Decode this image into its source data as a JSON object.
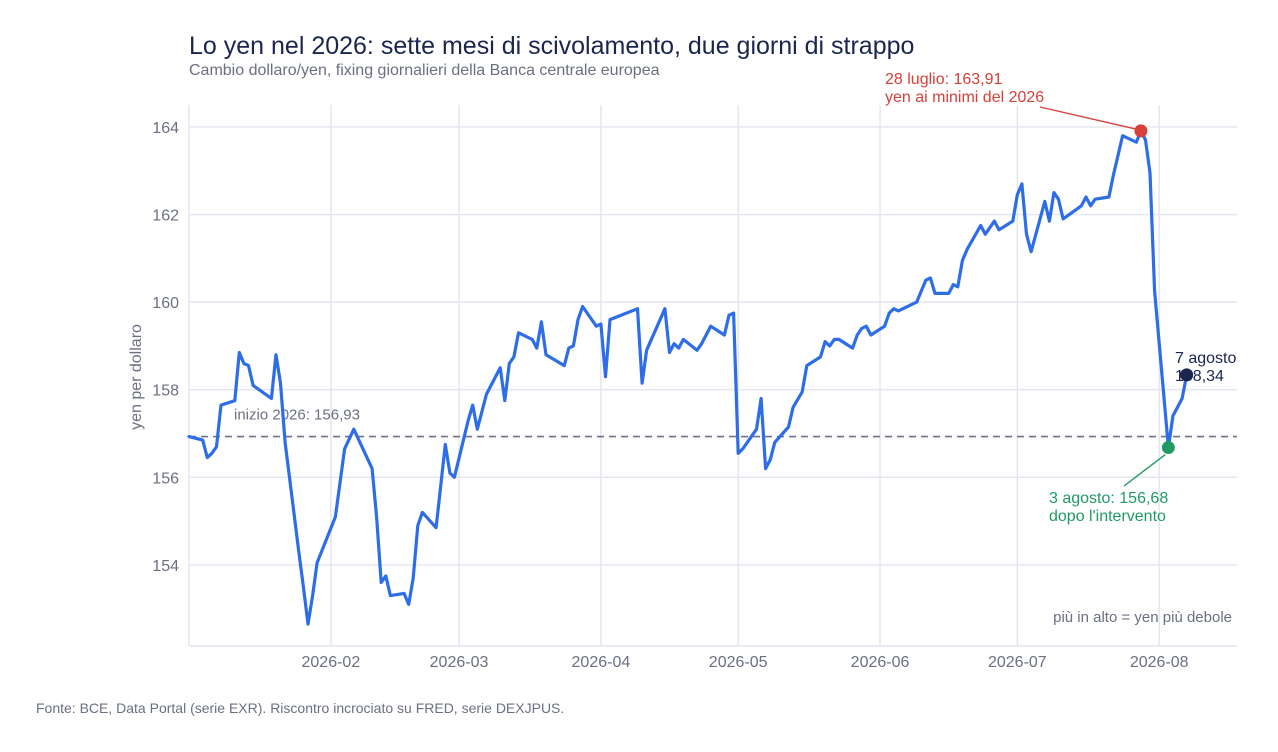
{
  "title": "Lo yen nel 2026: sette mesi di scivolamento, due giorni di strappo",
  "subtitle": "Cambio dollaro/yen, fixing giornalieri della Banca centrale europea",
  "source": "Fonte: BCE, Data Portal (serie EXR). Riscontro incrociato su FRED, serie DEXJPUS.",
  "note": "più in alto = yen più debole",
  "colors": {
    "line": "#2e6de8",
    "grid": "#e3e5ef",
    "baseline": "#6e7385",
    "peak": "#d8403a",
    "trough": "#1f9a63",
    "end": "#1a2550"
  },
  "annotations": {
    "baseline_label": "inizio 2026: 156,93",
    "peak_line1": "28 luglio: 163,91",
    "peak_line2": "yen ai minimi del 2026",
    "trough_line1": "3 agosto: 156,68",
    "trough_line2": "dopo l'intervento",
    "end_line1": "7 agosto",
    "end_line2": "158,34"
  },
  "chart_data": {
    "type": "line",
    "title": "Lo yen nel 2026: sette mesi di scivolamento, due giorni di strappo",
    "subtitle": "Cambio dollaro/yen, fixing giornalieri della Banca centrale europea",
    "xlabel": "",
    "ylabel": "yen per dollaro",
    "x_ticks": [
      "2026-02",
      "2026-03",
      "2026-04",
      "2026-05",
      "2026-06",
      "2026-07",
      "2026-08"
    ],
    "y_ticks": [
      154,
      156,
      158,
      160,
      162,
      164
    ],
    "xlim": [
      "2026-01-01",
      "2026-08-18"
    ],
    "ylim": [
      152.15,
      164.5
    ],
    "grid": true,
    "reference_line": {
      "label": "inizio 2026: 156,93",
      "y": 156.93
    },
    "highlights": [
      {
        "x": "2026-07-28",
        "y": 163.91,
        "label": "28 luglio: 163,91 / yen ai minimi del 2026"
      },
      {
        "x": "2026-08-03",
        "y": 156.68,
        "label": "3 agosto: 156,68 / dopo l'intervento"
      },
      {
        "x": "2026-08-07",
        "y": 158.34,
        "label": "7 agosto / 158,34"
      }
    ],
    "series": [
      {
        "name": "",
        "points": [
          [
            "2026-01-01",
            156.93
          ],
          [
            "2026-01-04",
            156.85
          ],
          [
            "2026-01-05",
            156.45
          ],
          [
            "2026-01-06",
            156.55
          ],
          [
            "2026-01-07",
            156.7
          ],
          [
            "2026-01-08",
            157.65
          ],
          [
            "2026-01-11",
            157.75
          ],
          [
            "2026-01-12",
            158.85
          ],
          [
            "2026-01-13",
            158.6
          ],
          [
            "2026-01-14",
            158.55
          ],
          [
            "2026-01-15",
            158.1
          ],
          [
            "2026-01-19",
            157.8
          ],
          [
            "2026-01-20",
            158.8
          ],
          [
            "2026-01-21",
            158.15
          ],
          [
            "2026-01-22",
            156.8
          ],
          [
            "2026-01-25",
            154.3
          ],
          [
            "2026-01-26",
            153.5
          ],
          [
            "2026-01-27",
            152.65
          ],
          [
            "2026-01-28",
            153.3
          ],
          [
            "2026-01-29",
            154.05
          ],
          [
            "2026-02-02",
            155.1
          ],
          [
            "2026-02-04",
            156.65
          ],
          [
            "2026-02-06",
            157.1
          ],
          [
            "2026-02-10",
            156.2
          ],
          [
            "2026-02-11",
            155.1
          ],
          [
            "2026-02-12",
            153.6
          ],
          [
            "2026-02-13",
            153.75
          ],
          [
            "2026-02-14",
            153.3
          ],
          [
            "2026-02-17",
            153.35
          ],
          [
            "2026-02-18",
            153.1
          ],
          [
            "2026-02-19",
            153.7
          ],
          [
            "2026-02-20",
            154.9
          ],
          [
            "2026-02-21",
            155.2
          ],
          [
            "2026-02-24",
            154.85
          ],
          [
            "2026-02-25",
            155.8
          ],
          [
            "2026-02-26",
            156.75
          ],
          [
            "2026-02-27",
            156.1
          ],
          [
            "2026-02-28",
            156.0
          ],
          [
            "2026-03-03",
            157.3
          ],
          [
            "2026-03-04",
            157.65
          ],
          [
            "2026-03-05",
            157.1
          ],
          [
            "2026-03-07",
            157.9
          ],
          [
            "2026-03-10",
            158.5
          ],
          [
            "2026-03-11",
            157.75
          ],
          [
            "2026-03-12",
            158.6
          ],
          [
            "2026-03-13",
            158.75
          ],
          [
            "2026-03-14",
            159.3
          ],
          [
            "2026-03-17",
            159.15
          ],
          [
            "2026-03-18",
            158.95
          ],
          [
            "2026-03-19",
            159.55
          ],
          [
            "2026-03-20",
            158.8
          ],
          [
            "2026-03-24",
            158.55
          ],
          [
            "2026-03-25",
            158.95
          ],
          [
            "2026-03-26",
            159.0
          ],
          [
            "2026-03-27",
            159.6
          ],
          [
            "2026-03-28",
            159.9
          ],
          [
            "2026-03-31",
            159.45
          ],
          [
            "2026-04-01",
            159.5
          ],
          [
            "2026-04-02",
            158.3
          ],
          [
            "2026-04-03",
            159.6
          ],
          [
            "2026-04-09",
            159.85
          ],
          [
            "2026-04-10",
            158.15
          ],
          [
            "2026-04-11",
            158.9
          ],
          [
            "2026-04-15",
            159.85
          ],
          [
            "2026-04-16",
            158.85
          ],
          [
            "2026-04-17",
            159.05
          ],
          [
            "2026-04-18",
            158.95
          ],
          [
            "2026-04-19",
            159.15
          ],
          [
            "2026-04-22",
            158.9
          ],
          [
            "2026-04-23",
            159.05
          ],
          [
            "2026-04-25",
            159.45
          ],
          [
            "2026-04-28",
            159.25
          ],
          [
            "2026-04-29",
            159.7
          ],
          [
            "2026-04-30",
            159.75
          ],
          [
            "2026-05-01",
            156.55
          ],
          [
            "2026-05-02",
            156.65
          ],
          [
            "2026-05-05",
            157.1
          ],
          [
            "2026-05-06",
            157.8
          ],
          [
            "2026-05-07",
            156.2
          ],
          [
            "2026-05-08",
            156.4
          ],
          [
            "2026-05-09",
            156.8
          ],
          [
            "2026-05-12",
            157.15
          ],
          [
            "2026-05-13",
            157.6
          ],
          [
            "2026-05-15",
            157.95
          ],
          [
            "2026-05-16",
            158.55
          ],
          [
            "2026-05-19",
            158.75
          ],
          [
            "2026-05-20",
            159.1
          ],
          [
            "2026-05-21",
            159.0
          ],
          [
            "2026-05-22",
            159.15
          ],
          [
            "2026-05-23",
            159.15
          ],
          [
            "2026-05-26",
            158.95
          ],
          [
            "2026-05-27",
            159.25
          ],
          [
            "2026-05-28",
            159.4
          ],
          [
            "2026-05-29",
            159.45
          ],
          [
            "2026-05-30",
            159.25
          ],
          [
            "2026-06-02",
            159.45
          ],
          [
            "2026-06-03",
            159.75
          ],
          [
            "2026-06-04",
            159.85
          ],
          [
            "2026-06-05",
            159.8
          ],
          [
            "2026-06-09",
            160.0
          ],
          [
            "2026-06-10",
            160.25
          ],
          [
            "2026-06-11",
            160.5
          ],
          [
            "2026-06-12",
            160.55
          ],
          [
            "2026-06-13",
            160.2
          ],
          [
            "2026-06-16",
            160.2
          ],
          [
            "2026-06-17",
            160.4
          ],
          [
            "2026-06-18",
            160.35
          ],
          [
            "2026-06-19",
            160.95
          ],
          [
            "2026-06-20",
            161.2
          ],
          [
            "2026-06-23",
            161.75
          ],
          [
            "2026-06-24",
            161.55
          ],
          [
            "2026-06-26",
            161.85
          ],
          [
            "2026-06-27",
            161.65
          ],
          [
            "2026-06-30",
            161.85
          ],
          [
            "2026-07-01",
            162.45
          ],
          [
            "2026-07-02",
            162.7
          ],
          [
            "2026-07-03",
            161.55
          ],
          [
            "2026-07-04",
            161.15
          ],
          [
            "2026-07-07",
            162.3
          ],
          [
            "2026-07-08",
            161.85
          ],
          [
            "2026-07-09",
            162.5
          ],
          [
            "2026-07-10",
            162.35
          ],
          [
            "2026-07-11",
            161.9
          ],
          [
            "2026-07-15",
            162.2
          ],
          [
            "2026-07-16",
            162.4
          ],
          [
            "2026-07-17",
            162.2
          ],
          [
            "2026-07-18",
            162.35
          ],
          [
            "2026-07-21",
            162.4
          ],
          [
            "2026-07-22",
            162.9
          ],
          [
            "2026-07-24",
            163.8
          ],
          [
            "2026-07-27",
            163.65
          ],
          [
            "2026-07-28",
            163.91
          ],
          [
            "2026-07-29",
            163.7
          ],
          [
            "2026-07-30",
            162.95
          ],
          [
            "2026-07-31",
            160.25
          ],
          [
            "2026-08-03",
            156.68
          ],
          [
            "2026-08-04",
            157.4
          ],
          [
            "2026-08-05",
            157.6
          ],
          [
            "2026-08-06",
            157.8
          ],
          [
            "2026-08-07",
            158.34
          ]
        ]
      }
    ]
  }
}
